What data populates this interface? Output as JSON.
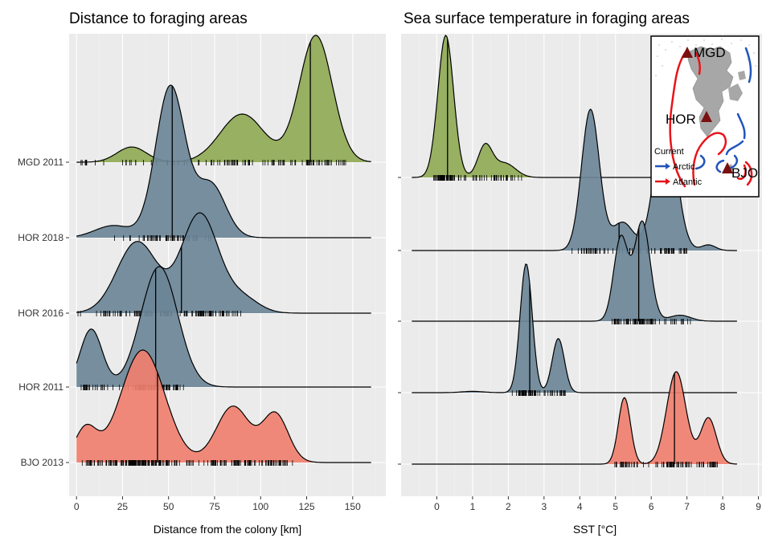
{
  "chart_data": [
    {
      "type": "area",
      "title": "Distance to foraging areas",
      "xlabel": "Distance from the colony [km]",
      "ylabel": "",
      "xlim": [
        -4,
        168
      ],
      "xticks": [
        "0",
        "25",
        "50",
        "75",
        "100",
        "125",
        "150"
      ],
      "grid": true,
      "categories": [
        "MGD 2011",
        "HOR 2018",
        "HOR 2016",
        "HOR 2011",
        "BJO 2013"
      ],
      "series": [
        {
          "name": "MGD 2011",
          "color": "#8faa55",
          "range": [
            0,
            160
          ],
          "median": 127,
          "peaks": [
            [
              30,
              0.12,
              8
            ],
            [
              90,
              0.38,
              12
            ],
            [
              130,
              1.0,
              9
            ]
          ],
          "rug_range": [
            0,
            150
          ],
          "rug_count": 110
        },
        {
          "name": "HOR 2018",
          "color": "#6b8597",
          "range": [
            0,
            160
          ],
          "median": 52,
          "peaks": [
            [
              20,
              0.08,
              10
            ],
            [
              51,
              1.0,
              8
            ],
            [
              73,
              0.35,
              8
            ]
          ],
          "rug_range": [
            10,
            75
          ],
          "rug_count": 60
        },
        {
          "name": "HOR 2016",
          "color": "#6b8597",
          "range": [
            0,
            160
          ],
          "median": 57,
          "peaks": [
            [
              33,
              0.72,
              11
            ],
            [
              67,
              1.0,
              10
            ],
            [
              90,
              0.15,
              9
            ]
          ],
          "rug_range": [
            0,
            90
          ],
          "rug_count": 120
        },
        {
          "name": "HOR 2011",
          "color": "#6b8597",
          "range": [
            0,
            160
          ],
          "median": 43,
          "peaks": [
            [
              8,
              0.48,
              6
            ],
            [
              45,
              1.0,
              10
            ]
          ],
          "rug_range": [
            2,
            60
          ],
          "rug_count": 90
        },
        {
          "name": "BJO 2013",
          "color": "#f07f6f",
          "range": [
            0,
            160
          ],
          "median": 44,
          "peaks": [
            [
              5,
              0.3,
              6
            ],
            [
              36,
              1.0,
              12
            ],
            [
              85,
              0.5,
              9
            ],
            [
              108,
              0.43,
              7
            ]
          ],
          "rug_range": [
            0,
            120
          ],
          "rug_count": 220
        }
      ]
    },
    {
      "type": "area",
      "title": "Sea surface temperature in foraging areas",
      "xlabel": "SST [°C]",
      "ylabel": "",
      "xlim": [
        -1.0,
        9.1
      ],
      "xticks": [
        "0",
        "1",
        "2",
        "3",
        "4",
        "5",
        "6",
        "7",
        "8",
        "9"
      ],
      "grid": true,
      "categories": [
        "MGD 2011",
        "HOR 2018",
        "HOR 2016",
        "HOR 2011",
        "BJO 2013"
      ],
      "series": [
        {
          "name": "MGD 2011",
          "color": "#8faa55",
          "range": [
            -0.7,
            8.4
          ],
          "median": 0.3,
          "peaks": [
            [
              0.25,
              1.0,
              0.22
            ],
            [
              1.35,
              0.22,
              0.2
            ],
            [
              1.9,
              0.1,
              0.3
            ]
          ],
          "rug_range": [
            -0.1,
            2.4
          ],
          "rug_count": 90
        },
        {
          "name": "HOR 2018",
          "color": "#6b8597",
          "range": [
            -0.7,
            8.4
          ],
          "median": 5.1,
          "peaks": [
            [
              4.3,
              1.0,
              0.25
            ],
            [
              5.2,
              0.2,
              0.3
            ],
            [
              6.4,
              0.98,
              0.3
            ],
            [
              7.6,
              0.04,
              0.2
            ]
          ],
          "rug_range": [
            3.7,
            7.0
          ],
          "rug_count": 80
        },
        {
          "name": "HOR 2016",
          "color": "#6b8597",
          "range": [
            -0.7,
            8.4
          ],
          "median": 5.65,
          "peaks": [
            [
              5.15,
              0.84,
              0.2
            ],
            [
              5.75,
              1.0,
              0.22
            ],
            [
              6.8,
              0.06,
              0.3
            ]
          ],
          "rug_range": [
            4.9,
            7.2
          ],
          "rug_count": 80
        },
        {
          "name": "HOR 2011",
          "color": "#6b8597",
          "range": [
            -0.7,
            8.4
          ],
          "median": 2.6,
          "peaks": [
            [
              2.5,
              1.0,
              0.17
            ],
            [
              3.4,
              0.42,
              0.17
            ],
            [
              1.0,
              0.01,
              0.3
            ]
          ],
          "rug_range": [
            2.1,
            3.65
          ],
          "rug_count": 60
        },
        {
          "name": "BJO 2013",
          "color": "#f07f6f",
          "range": [
            -0.7,
            8.4
          ],
          "median": 6.65,
          "peaks": [
            [
              5.25,
              0.72,
              0.17
            ],
            [
              6.7,
              1.0,
              0.27
            ],
            [
              7.6,
              0.5,
              0.22
            ]
          ],
          "rug_range": [
            4.9,
            7.9
          ],
          "rug_count": 90
        }
      ]
    }
  ],
  "map_inset": {
    "labels": {
      "mgd": "MGD",
      "hor": "HOR",
      "bjo": "BJO"
    },
    "legend_title": "Current",
    "legend_items": [
      "Arctic",
      "Atlantic"
    ],
    "arctic_color": "#2255bb",
    "atlantic_color": "#e8141a",
    "colony_color": "#7a1010"
  }
}
